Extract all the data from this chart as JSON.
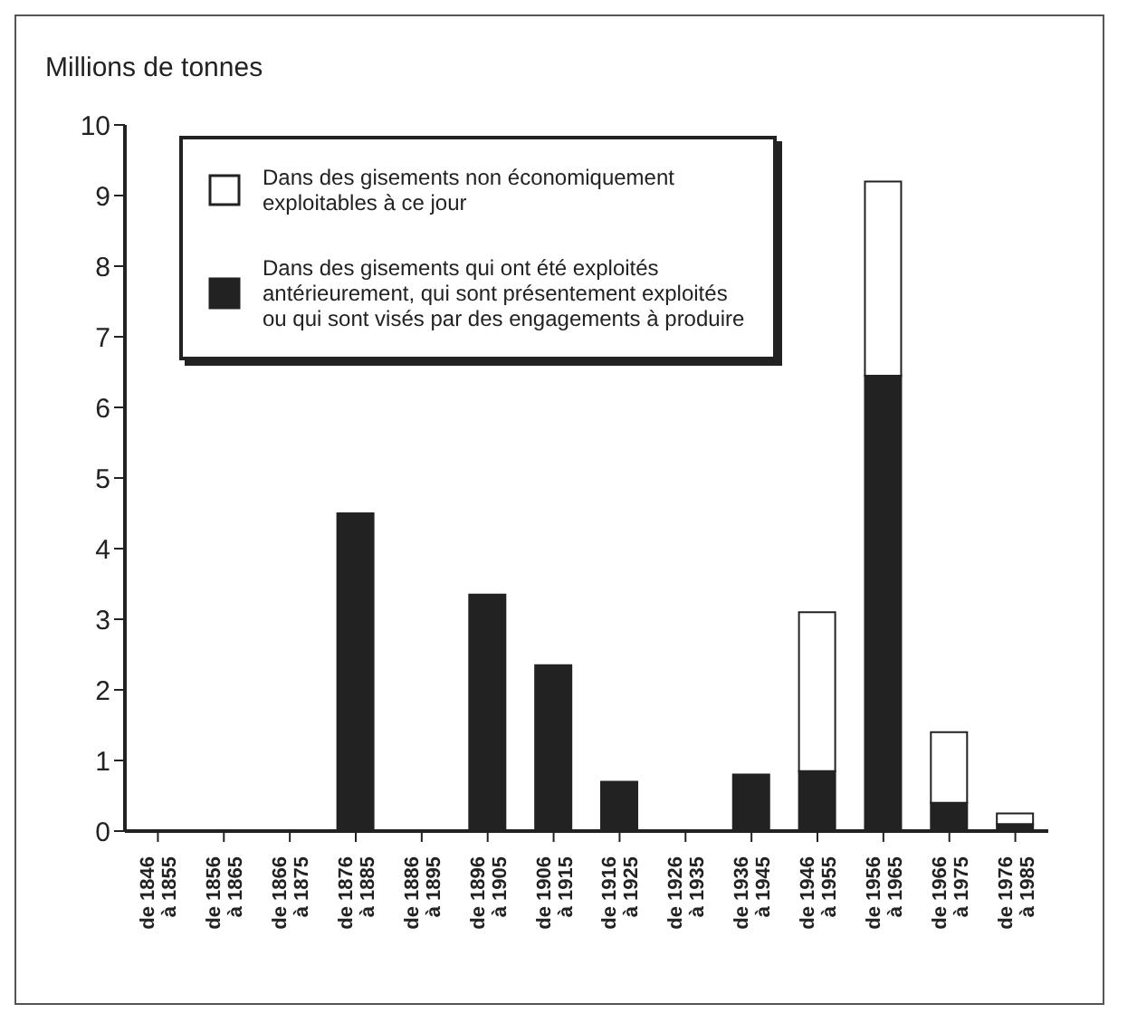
{
  "chart_data": {
    "type": "bar",
    "ylabel": "Millions de tonnes",
    "stacked": true,
    "categories": [
      "de 1846 à 1855",
      "de 1856 à 1865",
      "de 1866 à 1875",
      "de 1876 à 1885",
      "de 1886 à 1895",
      "de 1896 à 1905",
      "de 1906 à 1915",
      "de 1916 à 1925",
      "de 1926 à 1935",
      "de 1936 à 1945",
      "de 1946 à 1955",
      "de 1956 à 1965",
      "de 1966 à 1975",
      "de 1976 à 1985"
    ],
    "series": [
      {
        "name": "Dans des gisements qui ont été exploités antérieurement, qui sont présentement exploités ou qui sont visés par des engagements à produire",
        "color": "#222222",
        "values": [
          0,
          0,
          0,
          4.5,
          0,
          3.35,
          2.35,
          0.7,
          0,
          0.8,
          0.85,
          6.45,
          0.4,
          0.1
        ]
      },
      {
        "name": "Dans des gisements non économiquement exploitables à ce jour",
        "color": "#ffffff",
        "values": [
          0,
          0,
          0,
          0,
          0,
          0,
          0,
          0,
          0,
          0,
          2.25,
          2.75,
          1.0,
          0.15
        ]
      }
    ],
    "ylim": [
      0,
      10
    ],
    "yticks": [
      0,
      1,
      2,
      3,
      4,
      5,
      6,
      7,
      8,
      9,
      10
    ],
    "grid": false,
    "legend": "top left"
  }
}
